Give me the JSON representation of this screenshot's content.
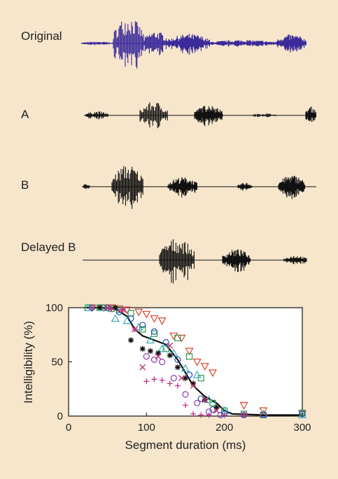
{
  "waveforms": {
    "labels": [
      "Original",
      "A",
      "B",
      "Delayed B"
    ],
    "colors": {
      "original": "#3a2a9a",
      "processed": "#111111"
    }
  },
  "chart_data": {
    "type": "scatter",
    "xlabel": "Segment duration (ms)",
    "ylabel": "Intelligibility (%)",
    "xlim": [
      0,
      300
    ],
    "ylim": [
      0,
      100
    ],
    "xticks": [
      0,
      100,
      200,
      300
    ],
    "yticks": [
      0,
      50,
      100
    ],
    "grid": false,
    "curve": {
      "color": "#111111",
      "x": [
        20,
        40,
        60,
        75,
        85,
        95,
        110,
        125,
        140,
        150,
        160,
        175,
        190,
        200,
        210,
        250,
        300
      ],
      "y": [
        100,
        100,
        99,
        92,
        80,
        74,
        70,
        66,
        52,
        40,
        28,
        18,
        12,
        5,
        2,
        1,
        1
      ]
    },
    "series": [
      {
        "marker": "triangle-down",
        "color": "#d9442c",
        "x": [
          30,
          45,
          55,
          65,
          75,
          90,
          100,
          110,
          120,
          135,
          145,
          155,
          165,
          175,
          185,
          225,
          250,
          300
        ],
        "y": [
          100,
          100,
          100,
          99,
          98,
          96,
          94,
          90,
          88,
          74,
          72,
          60,
          50,
          46,
          40,
          10,
          5,
          2
        ]
      },
      {
        "marker": "square",
        "color": "#2a9a4a",
        "x": [
          25,
          40,
          55,
          65,
          80,
          95,
          110,
          125,
          140,
          155,
          170,
          185,
          200,
          225,
          250,
          300
        ],
        "y": [
          100,
          100,
          99,
          98,
          95,
          80,
          76,
          62,
          72,
          55,
          35,
          12,
          5,
          2,
          1,
          3
        ]
      },
      {
        "marker": "triangle-up",
        "color": "#3aaeb8",
        "x": [
          25,
          45,
          60,
          75,
          90,
          105,
          120,
          135,
          150,
          165,
          180,
          200,
          250,
          300
        ],
        "y": [
          100,
          100,
          90,
          88,
          82,
          70,
          62,
          58,
          44,
          38,
          15,
          5,
          2,
          1
        ]
      },
      {
        "marker": "circle",
        "color": "#1e4db0",
        "x": [
          30,
          50,
          65,
          80,
          95,
          110,
          125,
          140,
          155,
          170,
          185,
          200,
          225,
          250,
          300
        ],
        "y": [
          100,
          100,
          96,
          90,
          84,
          78,
          68,
          52,
          38,
          16,
          6,
          2,
          1,
          1,
          2
        ]
      },
      {
        "marker": "circle",
        "color": "#8a3ab8",
        "x": [
          100,
          110,
          120,
          135,
          150,
          165,
          180,
          195,
          225,
          250
        ],
        "y": [
          55,
          52,
          50,
          35,
          20,
          12,
          4,
          1,
          1,
          1
        ]
      },
      {
        "marker": "star",
        "color": "#111111",
        "x": [
          40,
          60,
          80,
          95,
          105,
          115,
          130,
          140,
          150,
          160,
          175,
          190
        ],
        "y": [
          100,
          100,
          70,
          62,
          60,
          58,
          56,
          45,
          35,
          30,
          15,
          8
        ]
      },
      {
        "marker": "plus",
        "color": "#c23090",
        "x": [
          30,
          55,
          70,
          85,
          100,
          110,
          120,
          130,
          140,
          150,
          160,
          170,
          180,
          200,
          225
        ],
        "y": [
          100,
          99,
          98,
          80,
          32,
          34,
          33,
          30,
          28,
          10,
          2,
          1,
          1,
          1,
          1
        ]
      },
      {
        "marker": "cross",
        "color": "#c0307a",
        "x": [
          50,
          70,
          85,
          95,
          115,
          130,
          145,
          160,
          175,
          190
        ],
        "y": [
          100,
          98,
          80,
          45,
          55,
          65,
          35,
          28,
          15,
          5
        ]
      }
    ]
  }
}
